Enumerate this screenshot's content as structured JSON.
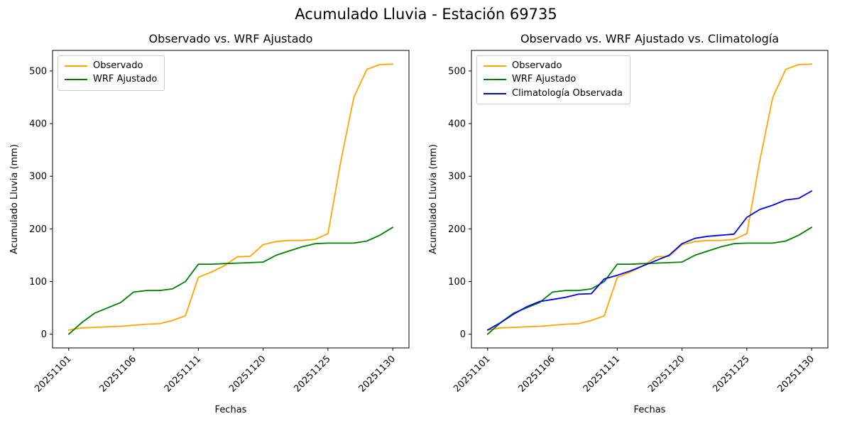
{
  "figure_title": "Acumulado Lluvia - Estación 69735",
  "chart_data": [
    {
      "type": "line",
      "title": "Observado vs. WRF Ajustado",
      "xlabel": "Fechas",
      "ylabel": "Acumulado Lluvia (mm)",
      "x": [
        "20251101",
        "20251102",
        "20251103",
        "20251104",
        "20251105",
        "20251106",
        "20251107",
        "20251108",
        "20251109",
        "20251110",
        "20251111",
        "20251116",
        "20251117",
        "20251118",
        "20251119",
        "20251120",
        "20251121",
        "20251122",
        "20251123",
        "20251124",
        "20251125",
        "20251126",
        "20251127",
        "20251128",
        "20251129",
        "20251130"
      ],
      "xtick_indices": [
        0,
        5,
        10,
        15,
        20,
        25
      ],
      "yticks": [
        0,
        100,
        200,
        300,
        400,
        500
      ],
      "xlim": [
        -1.25,
        26.25
      ],
      "ylim": [
        -26,
        539
      ],
      "grid": false,
      "legend_position": "upper left",
      "series": [
        {
          "name": "Observado",
          "color": "#FFA500",
          "values": [
            8,
            12,
            13,
            14,
            15,
            17,
            19,
            20,
            26,
            35,
            108,
            118,
            130,
            147,
            148,
            170,
            176,
            178,
            178,
            180,
            191,
            330,
            450,
            503,
            512,
            513
          ]
        },
        {
          "name": "WRF Ajustado",
          "color": "#008000",
          "values": [
            0,
            22,
            40,
            50,
            60,
            80,
            83,
            83,
            86,
            100,
            133,
            133,
            134,
            135,
            136,
            137,
            150,
            158,
            166,
            172,
            173,
            173,
            173,
            177,
            188,
            203
          ]
        }
      ]
    },
    {
      "type": "line",
      "title": "Observado vs. WRF Ajustado vs. Climatología",
      "xlabel": "Fechas",
      "ylabel": "Acumulado Lluvia (mm)",
      "x": [
        "20251101",
        "20251102",
        "20251103",
        "20251104",
        "20251105",
        "20251106",
        "20251107",
        "20251108",
        "20251109",
        "20251110",
        "20251111",
        "20251116",
        "20251117",
        "20251118",
        "20251119",
        "20251120",
        "20251121",
        "20251122",
        "20251123",
        "20251124",
        "20251125",
        "20251126",
        "20251127",
        "20251128",
        "20251129",
        "20251130"
      ],
      "xtick_indices": [
        0,
        5,
        10,
        15,
        20,
        25
      ],
      "yticks": [
        0,
        100,
        200,
        300,
        400,
        500
      ],
      "xlim": [
        -1.25,
        26.25
      ],
      "ylim": [
        -26,
        539
      ],
      "grid": false,
      "legend_position": "upper left",
      "series": [
        {
          "name": "Observado",
          "color": "#FFA500",
          "values": [
            8,
            12,
            13,
            14,
            15,
            17,
            19,
            20,
            26,
            35,
            108,
            118,
            130,
            147,
            148,
            170,
            176,
            178,
            178,
            180,
            191,
            330,
            450,
            503,
            512,
            513
          ]
        },
        {
          "name": "WRF Ajustado",
          "color": "#008000",
          "values": [
            0,
            22,
            40,
            50,
            60,
            80,
            83,
            83,
            86,
            100,
            133,
            133,
            134,
            135,
            136,
            137,
            150,
            158,
            166,
            172,
            173,
            173,
            173,
            177,
            188,
            203
          ]
        },
        {
          "name": "Climatología Observada",
          "color": "#0000EE",
          "values": [
            8,
            22,
            38,
            52,
            62,
            66,
            70,
            76,
            77,
            105,
            112,
            120,
            130,
            140,
            150,
            172,
            182,
            186,
            188,
            190,
            222,
            237,
            245,
            255,
            258,
            272
          ]
        }
      ]
    }
  ]
}
